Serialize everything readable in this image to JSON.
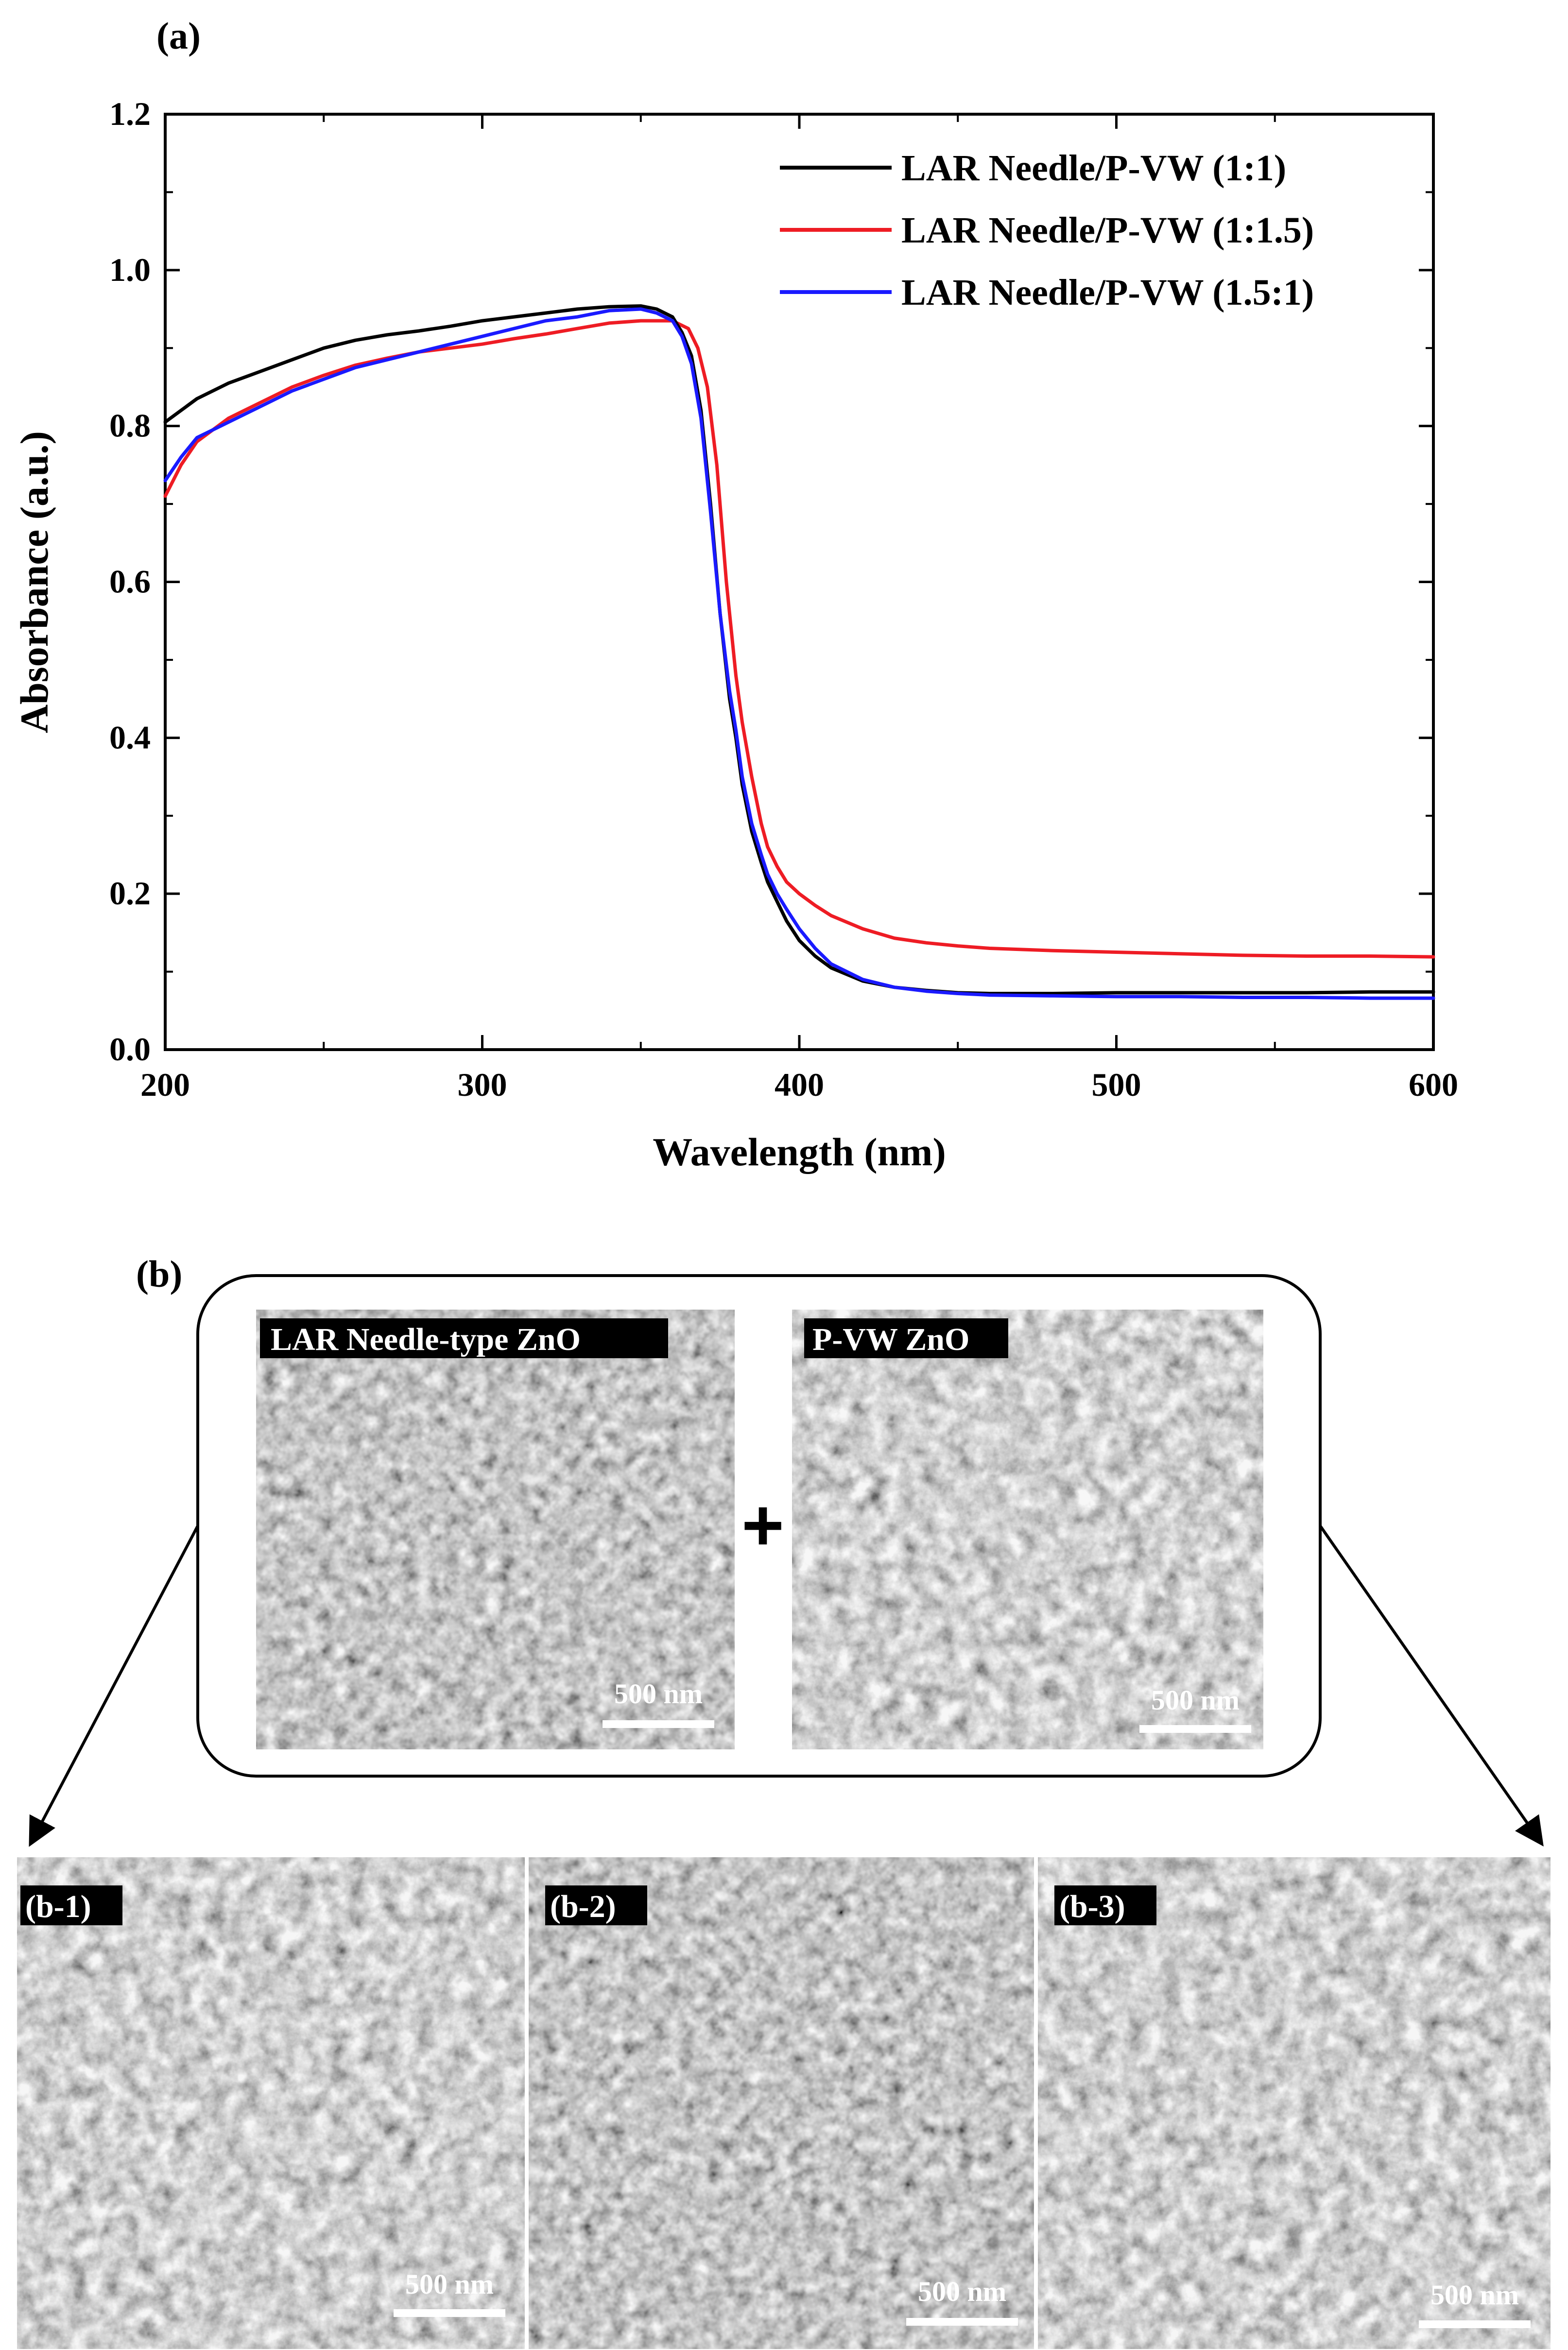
{
  "panel_a_label": "(a)",
  "panel_b_label": "(b)",
  "chart_data": {
    "type": "line",
    "title": "",
    "xlabel": "Wavelength (nm)",
    "ylabel": "Absorbance (a.u.)",
    "xlim": [
      200,
      600
    ],
    "ylim": [
      0.0,
      1.2
    ],
    "x_ticks": [
      200,
      300,
      400,
      500,
      600
    ],
    "x_tick_labels": [
      "200",
      "300",
      "400",
      "500",
      "600"
    ],
    "y_ticks": [
      0.0,
      0.2,
      0.4,
      0.6,
      0.8,
      1.0,
      1.2
    ],
    "y_tick_labels": [
      "0.0",
      "0.2",
      "0.4",
      "0.6",
      "0.8",
      "1.0",
      "1.2"
    ],
    "legend_position": "top-right",
    "grid": false,
    "series": [
      {
        "name": "LAR Needle/P-VW (1:1)",
        "color": "#000000",
        "x": [
          200,
          205,
          210,
          220,
          230,
          240,
          250,
          260,
          270,
          280,
          290,
          300,
          310,
          320,
          330,
          340,
          350,
          355,
          360,
          363,
          366,
          369,
          372,
          375,
          378,
          380,
          382,
          385,
          388,
          390,
          393,
          396,
          400,
          405,
          410,
          420,
          430,
          440,
          450,
          460,
          480,
          500,
          520,
          540,
          560,
          580,
          600
        ],
        "y": [
          0.805,
          0.82,
          0.835,
          0.855,
          0.87,
          0.885,
          0.9,
          0.91,
          0.917,
          0.922,
          0.928,
          0.935,
          0.94,
          0.945,
          0.95,
          0.953,
          0.954,
          0.95,
          0.94,
          0.92,
          0.89,
          0.82,
          0.7,
          0.56,
          0.45,
          0.4,
          0.34,
          0.28,
          0.24,
          0.215,
          0.19,
          0.165,
          0.14,
          0.12,
          0.105,
          0.088,
          0.08,
          0.076,
          0.073,
          0.072,
          0.072,
          0.073,
          0.073,
          0.073,
          0.073,
          0.074,
          0.074
        ]
      },
      {
        "name": "LAR Needle/P-VW (1:1.5)",
        "color": "#ee1c24",
        "x": [
          200,
          205,
          210,
          220,
          230,
          240,
          250,
          260,
          270,
          280,
          290,
          300,
          310,
          320,
          330,
          340,
          350,
          355,
          360,
          365,
          368,
          371,
          374,
          377,
          380,
          382,
          385,
          388,
          390,
          393,
          396,
          400,
          405,
          410,
          420,
          430,
          440,
          450,
          460,
          480,
          500,
          520,
          540,
          560,
          580,
          600
        ],
        "y": [
          0.71,
          0.75,
          0.78,
          0.81,
          0.83,
          0.85,
          0.865,
          0.878,
          0.887,
          0.895,
          0.9,
          0.905,
          0.912,
          0.918,
          0.925,
          0.932,
          0.935,
          0.935,
          0.935,
          0.925,
          0.9,
          0.85,
          0.75,
          0.6,
          0.48,
          0.42,
          0.35,
          0.29,
          0.26,
          0.235,
          0.215,
          0.2,
          0.185,
          0.172,
          0.155,
          0.143,
          0.137,
          0.133,
          0.13,
          0.127,
          0.125,
          0.123,
          0.121,
          0.12,
          0.12,
          0.119
        ]
      },
      {
        "name": "LAR Needle/P-VW (1.5:1)",
        "color": "#1a1aff",
        "x": [
          200,
          205,
          210,
          220,
          230,
          240,
          250,
          260,
          270,
          280,
          290,
          300,
          310,
          320,
          330,
          340,
          350,
          355,
          360,
          363,
          366,
          369,
          372,
          375,
          378,
          380,
          382,
          385,
          388,
          390,
          393,
          396,
          400,
          405,
          410,
          420,
          430,
          440,
          450,
          460,
          480,
          500,
          520,
          540,
          560,
          580,
          600
        ],
        "y": [
          0.73,
          0.76,
          0.785,
          0.805,
          0.825,
          0.845,
          0.86,
          0.875,
          0.885,
          0.895,
          0.905,
          0.915,
          0.925,
          0.935,
          0.94,
          0.948,
          0.95,
          0.945,
          0.935,
          0.915,
          0.88,
          0.81,
          0.69,
          0.56,
          0.46,
          0.41,
          0.35,
          0.29,
          0.25,
          0.225,
          0.2,
          0.18,
          0.155,
          0.13,
          0.11,
          0.09,
          0.08,
          0.075,
          0.072,
          0.07,
          0.069,
          0.068,
          0.068,
          0.067,
          0.067,
          0.066,
          0.066
        ]
      }
    ]
  },
  "panel_b": {
    "top_images": [
      {
        "label": "LAR Needle-type ZnO",
        "scale_bar": "500 nm"
      },
      {
        "label": "P-VW ZnO",
        "scale_bar": "500 nm"
      }
    ],
    "plus_sign": "+",
    "bottom_images": [
      {
        "label": "(b-1)",
        "scale_bar": "500 nm"
      },
      {
        "label": "(b-2)",
        "scale_bar": "500 nm"
      },
      {
        "label": "(b-3)",
        "scale_bar": "500 nm"
      }
    ]
  }
}
